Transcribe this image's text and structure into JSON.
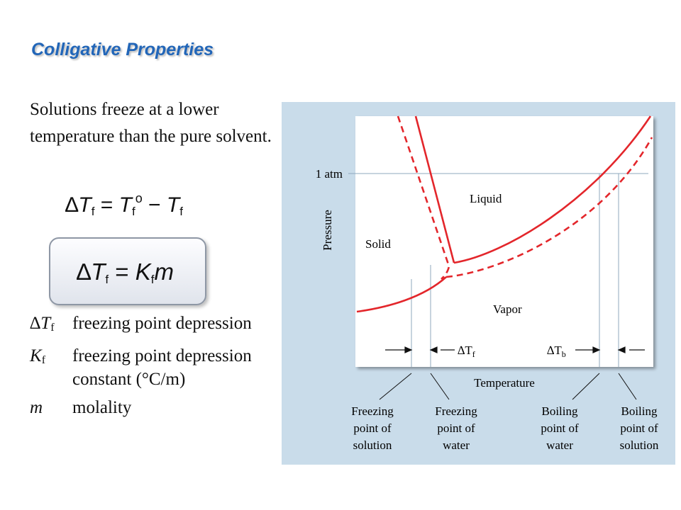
{
  "title": "Colligative Properties",
  "intro": "Solutions freeze at a lower temperature than the pure solvent.",
  "equations": {
    "delta": "∆",
    "T": "T",
    "sub_f": "f",
    "degree": "o",
    "equals": " = ",
    "minus": " − ",
    "K": "K",
    "m": "m"
  },
  "definitions": [
    {
      "symbol_main": "∆T",
      "symbol_sub": "f",
      "text": "freezing point depression"
    },
    {
      "symbol_main": "K",
      "symbol_sub": "f",
      "text": "freezing point depression constant (°C/m)"
    },
    {
      "symbol_main": "m",
      "symbol_sub": "",
      "text": "molality"
    }
  ],
  "figure": {
    "colors": {
      "panel": "#c9dcea",
      "plot": "#ffffff",
      "curve": "#e3262b",
      "guide": "#8fa9bd"
    },
    "pressure_label": "Pressure",
    "temperature_label": "Temperature",
    "one_atm_label": "1 atm",
    "region_labels": {
      "solid": "Solid",
      "liquid": "Liquid",
      "vapor": "Vapor"
    },
    "delta_tf": {
      "main": "∆T",
      "sub": "f"
    },
    "delta_tb": {
      "main": "∆T",
      "sub": "b"
    },
    "callouts": {
      "fp_solution": [
        "Freezing",
        "point of",
        "solution"
      ],
      "fp_water": [
        "Freezing",
        "point of",
        "water"
      ],
      "bp_water": [
        "Boiling",
        "point of",
        "water"
      ],
      "bp_solution": [
        "Boiling",
        "point of",
        "solution"
      ]
    }
  }
}
